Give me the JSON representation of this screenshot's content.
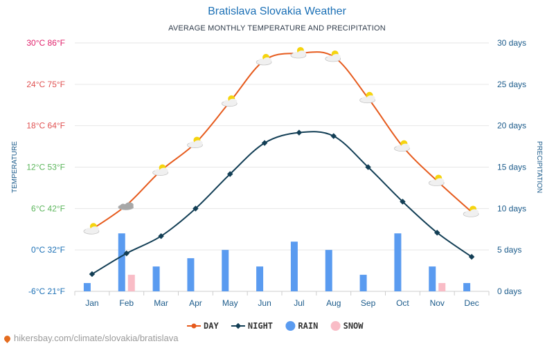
{
  "header": {
    "title": "Bratislava Slovakia Weather",
    "subtitle": "AVERAGE MONTHLY TEMPERATURE AND PRECIPITATION"
  },
  "footer": {
    "source": "hikersbay.com/climate/slovakia/bratislava"
  },
  "chart_data": {
    "type": "line",
    "categories": [
      "Jan",
      "Feb",
      "Mar",
      "Apr",
      "May",
      "Jun",
      "Jul",
      "Aug",
      "Sep",
      "Oct",
      "Nov",
      "Dec"
    ],
    "series": [
      {
        "name": "DAY",
        "axis": "temperature",
        "unit": "°C",
        "values": [
          3,
          6.5,
          11.5,
          15.5,
          21.5,
          27.5,
          28.5,
          28,
          22,
          15,
          10,
          5.5
        ],
        "color": "#e65a1c"
      },
      {
        "name": "NIGHT",
        "axis": "temperature",
        "unit": "°C",
        "values": [
          -3.5,
          -0.5,
          2,
          6,
          11,
          15.5,
          17,
          16.5,
          12,
          7,
          2.5,
          -1
        ],
        "color": "#123e55"
      },
      {
        "name": "RAIN",
        "axis": "precipitation",
        "unit": "days",
        "values": [
          1,
          7,
          3,
          4,
          5,
          3,
          6,
          5,
          2,
          7,
          3,
          1
        ],
        "color": "#5a9bf0"
      },
      {
        "name": "SNOW",
        "axis": "precipitation",
        "unit": "days",
        "values": [
          0,
          2,
          0,
          0,
          0,
          0,
          0,
          0,
          0,
          0,
          1,
          0
        ],
        "color": "#f9bcc6"
      }
    ],
    "weather_icons": [
      "sun-cloud",
      "cloud",
      "sun-cloud",
      "sun-cloud",
      "sun-cloud",
      "sun-cloud",
      "sun-cloud",
      "sun-cloud",
      "sun-cloud",
      "sun-cloud",
      "sun-cloud",
      "sun-cloud"
    ],
    "y_left": {
      "label": "TEMPERATURE",
      "ylim": [
        -6,
        30
      ],
      "ticks": [
        -6,
        0,
        6,
        12,
        18,
        24,
        30
      ],
      "tick_labels": [
        "-6°C 21°F",
        "0°C 32°F",
        "6°C 42°F",
        "12°C 53°F",
        "18°C 64°F",
        "24°C 75°F",
        "30°C 86°F"
      ],
      "tick_colors": [
        "#1a6fb5",
        "#1a6fb5",
        "#5ab55a",
        "#5ab55a",
        "#e05050",
        "#e05050",
        "#e0206a"
      ]
    },
    "y_right": {
      "label": "PRECIPITATION",
      "ylim": [
        0,
        30
      ],
      "ticks": [
        0,
        5,
        10,
        15,
        20,
        25,
        30
      ],
      "tick_labels": [
        "0 days",
        "5 days",
        "10 days",
        "15 days",
        "20 days",
        "25 days",
        "30 days"
      ],
      "color": "#1a5a8a"
    },
    "axis_label_color": "#1a5a8a",
    "legend": [
      {
        "name": "DAY",
        "marker": "line-circle",
        "color": "#e65a1c"
      },
      {
        "name": "NIGHT",
        "marker": "line-diamond",
        "color": "#123e55"
      },
      {
        "name": "RAIN",
        "marker": "circle",
        "color": "#5a9bf0"
      },
      {
        "name": "SNOW",
        "marker": "circle",
        "color": "#f9bcc6"
      }
    ],
    "grid": true
  }
}
